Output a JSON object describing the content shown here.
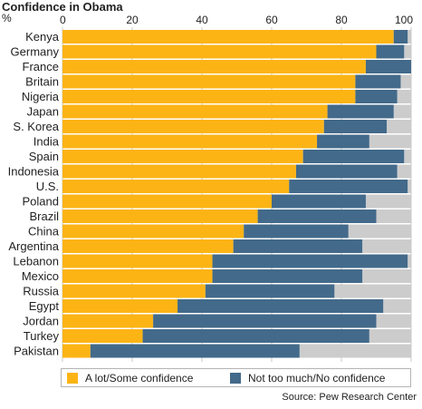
{
  "header": {
    "title": "Confidence in Obama",
    "unit": "%"
  },
  "legend": {
    "items": [
      {
        "label": "A lot/Some confidence",
        "color": "#fcb415"
      },
      {
        "label": "Not too much/No confidence",
        "color": "#436a8a"
      }
    ]
  },
  "source": "Source: Pew Research Center",
  "chart_data": {
    "type": "bar",
    "orientation": "horizontal",
    "stacked": true,
    "title": "Confidence in Obama",
    "xlim": [
      0,
      100
    ],
    "xticks": [
      "0",
      "20",
      "40",
      "60",
      "80",
      "100"
    ],
    "grid": true,
    "legend_position": "bottom",
    "colors": {
      "confidence": "#fcb415",
      "no_confidence": "#436a8a",
      "remainder": "#cccccc"
    },
    "categories": [
      "Kenya",
      "Germany",
      "France",
      "Britain",
      "Nigeria",
      "Japan",
      "S. Korea",
      "India",
      "Spain",
      "Indonesia",
      "U.S.",
      "Poland",
      "Brazil",
      "China",
      "Argentina",
      "Lebanon",
      "Mexico",
      "Russia",
      "Egypt",
      "Jordan",
      "Turkey",
      "Pakistan"
    ],
    "series": [
      {
        "name": "A lot/Some confidence",
        "values": [
          95,
          90,
          87,
          84,
          84,
          76,
          75,
          73,
          69,
          67,
          65,
          60,
          56,
          52,
          49,
          43,
          43,
          41,
          33,
          26,
          23,
          8
        ]
      },
      {
        "name": "Not too much/No confidence",
        "values": [
          4,
          8,
          13,
          13,
          12,
          19,
          18,
          15,
          29,
          29,
          34,
          27,
          34,
          30,
          37,
          56,
          43,
          37,
          59,
          64,
          65,
          60
        ]
      }
    ]
  }
}
